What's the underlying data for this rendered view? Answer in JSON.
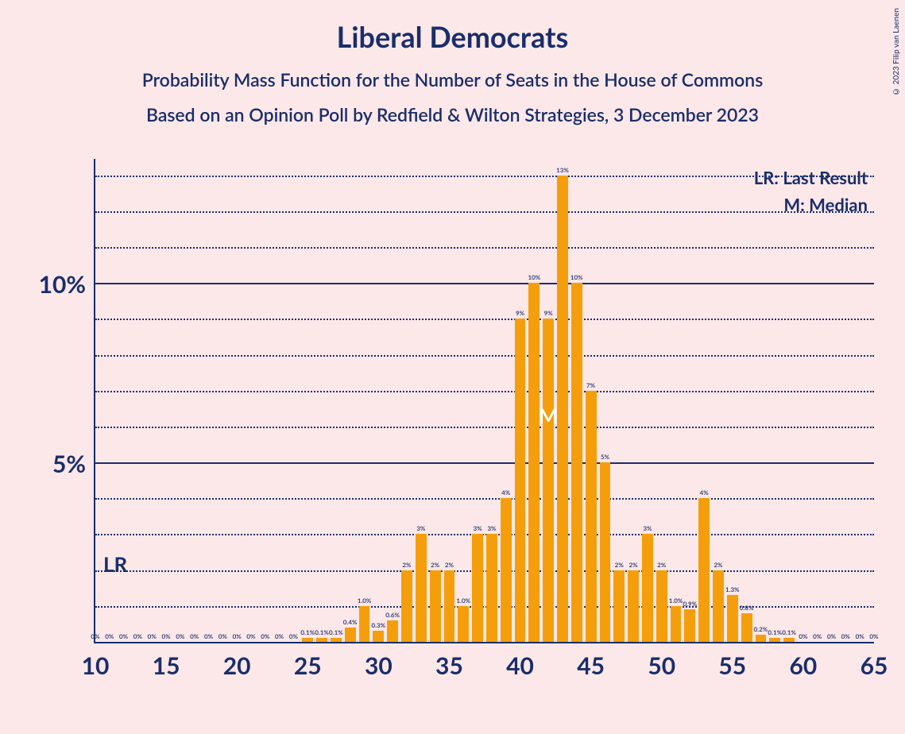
{
  "titles": {
    "main": "Liberal Democrats",
    "sub1": "Probability Mass Function for the Number of Seats in the House of Commons",
    "sub2": "Based on an Opinion Poll by Redfield & Wilton Strategies, 3 December 2023"
  },
  "copyright": "© 2023 Filip van Laenen",
  "legend": {
    "lr": "LR: Last Result",
    "m": "M: Median",
    "lr_short": "LR",
    "m_short": "M"
  },
  "chart": {
    "type": "bar",
    "background_color": "#fce8e8",
    "bar_color": "#f59e0b",
    "axis_color": "#1a2d6b",
    "text_color": "#1a2d6b",
    "median_text_color": "#ffffff",
    "x_range": [
      10,
      65
    ],
    "x_ticks": [
      10,
      15,
      20,
      25,
      30,
      35,
      40,
      45,
      50,
      55,
      60,
      65
    ],
    "y_range": [
      0,
      13.5
    ],
    "y_major_ticks": [
      5,
      10
    ],
    "y_minor_step": 1,
    "y_labels": {
      "5": "5%",
      "10": "10%"
    },
    "bar_width_ratio": 0.78,
    "median_seat": 42,
    "lr_seat": 11,
    "data": [
      {
        "seat": 10,
        "pct": 0,
        "label": "0%"
      },
      {
        "seat": 11,
        "pct": 0,
        "label": "0%"
      },
      {
        "seat": 12,
        "pct": 0,
        "label": "0%"
      },
      {
        "seat": 13,
        "pct": 0,
        "label": "0%"
      },
      {
        "seat": 14,
        "pct": 0,
        "label": "0%"
      },
      {
        "seat": 15,
        "pct": 0,
        "label": "0%"
      },
      {
        "seat": 16,
        "pct": 0,
        "label": "0%"
      },
      {
        "seat": 17,
        "pct": 0,
        "label": "0%"
      },
      {
        "seat": 18,
        "pct": 0,
        "label": "0%"
      },
      {
        "seat": 19,
        "pct": 0,
        "label": "0%"
      },
      {
        "seat": 20,
        "pct": 0,
        "label": "0%"
      },
      {
        "seat": 21,
        "pct": 0,
        "label": "0%"
      },
      {
        "seat": 22,
        "pct": 0,
        "label": "0%"
      },
      {
        "seat": 23,
        "pct": 0,
        "label": "0%"
      },
      {
        "seat": 24,
        "pct": 0,
        "label": "0%"
      },
      {
        "seat": 25,
        "pct": 0.1,
        "label": "0.1%"
      },
      {
        "seat": 26,
        "pct": 0.1,
        "label": "0.1%"
      },
      {
        "seat": 27,
        "pct": 0.1,
        "label": "0.1%"
      },
      {
        "seat": 28,
        "pct": 0.4,
        "label": "0.4%"
      },
      {
        "seat": 29,
        "pct": 1.0,
        "label": "1.0%"
      },
      {
        "seat": 30,
        "pct": 0.3,
        "label": "0.3%"
      },
      {
        "seat": 31,
        "pct": 0.6,
        "label": "0.6%"
      },
      {
        "seat": 32,
        "pct": 2,
        "label": "2%"
      },
      {
        "seat": 33,
        "pct": 3,
        "label": "3%"
      },
      {
        "seat": 34,
        "pct": 2,
        "label": "2%"
      },
      {
        "seat": 35,
        "pct": 2,
        "label": "2%"
      },
      {
        "seat": 36,
        "pct": 1.0,
        "label": "1.0%"
      },
      {
        "seat": 37,
        "pct": 3,
        "label": "3%"
      },
      {
        "seat": 38,
        "pct": 3,
        "label": "3%"
      },
      {
        "seat": 39,
        "pct": 4,
        "label": "4%"
      },
      {
        "seat": 40,
        "pct": 9,
        "label": "9%"
      },
      {
        "seat": 41,
        "pct": 10,
        "label": "10%"
      },
      {
        "seat": 42,
        "pct": 9,
        "label": "9%"
      },
      {
        "seat": 43,
        "pct": 13,
        "label": "13%"
      },
      {
        "seat": 44,
        "pct": 10,
        "label": "10%"
      },
      {
        "seat": 45,
        "pct": 7,
        "label": "7%"
      },
      {
        "seat": 46,
        "pct": 5,
        "label": "5%"
      },
      {
        "seat": 47,
        "pct": 2,
        "label": "2%"
      },
      {
        "seat": 48,
        "pct": 2,
        "label": "2%"
      },
      {
        "seat": 49,
        "pct": 3,
        "label": "3%"
      },
      {
        "seat": 50,
        "pct": 2,
        "label": "2%"
      },
      {
        "seat": 51,
        "pct": 1.0,
        "label": "1.0%"
      },
      {
        "seat": 52,
        "pct": 0.9,
        "label": "0.9%"
      },
      {
        "seat": 53,
        "pct": 4,
        "label": "4%"
      },
      {
        "seat": 54,
        "pct": 2,
        "label": "2%"
      },
      {
        "seat": 55,
        "pct": 1.3,
        "label": "1.3%"
      },
      {
        "seat": 56,
        "pct": 0.8,
        "label": "0.8%"
      },
      {
        "seat": 57,
        "pct": 0.2,
        "label": "0.2%"
      },
      {
        "seat": 58,
        "pct": 0.1,
        "label": "0.1%"
      },
      {
        "seat": 59,
        "pct": 0.1,
        "label": "0.1%"
      },
      {
        "seat": 60,
        "pct": 0,
        "label": "0%"
      },
      {
        "seat": 61,
        "pct": 0,
        "label": "0%"
      },
      {
        "seat": 62,
        "pct": 0,
        "label": "0%"
      },
      {
        "seat": 63,
        "pct": 0,
        "label": "0%"
      },
      {
        "seat": 64,
        "pct": 0,
        "label": "0%"
      },
      {
        "seat": 65,
        "pct": 0,
        "label": "0%"
      }
    ]
  }
}
